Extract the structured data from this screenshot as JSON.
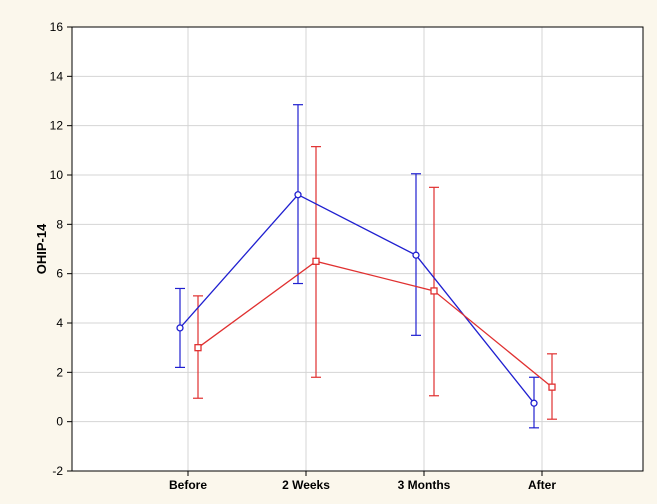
{
  "chart_data": {
    "type": "line",
    "title": "",
    "xlabel": "",
    "ylabel": "OHIP-14",
    "categories": [
      "Before",
      "2 Weeks",
      "3 Months",
      "After"
    ],
    "ylim": [
      -2,
      16
    ],
    "yticks": [
      -2,
      0,
      2,
      4,
      6,
      8,
      10,
      12,
      14,
      16
    ],
    "grid": true,
    "legend": "none",
    "series": [
      {
        "color": "#2020d0",
        "marker": "circle",
        "values": [
          3.8,
          9.2,
          6.75,
          0.75
        ],
        "lower": [
          2.2,
          5.6,
          3.5,
          -0.25
        ],
        "upper": [
          5.4,
          12.85,
          10.05,
          1.8
        ]
      },
      {
        "color": "#e03030",
        "marker": "square",
        "values": [
          3.0,
          6.5,
          5.3,
          1.4
        ],
        "lower": [
          0.95,
          1.8,
          1.05,
          0.1
        ],
        "upper": [
          5.1,
          11.15,
          9.5,
          2.75
        ]
      }
    ]
  }
}
